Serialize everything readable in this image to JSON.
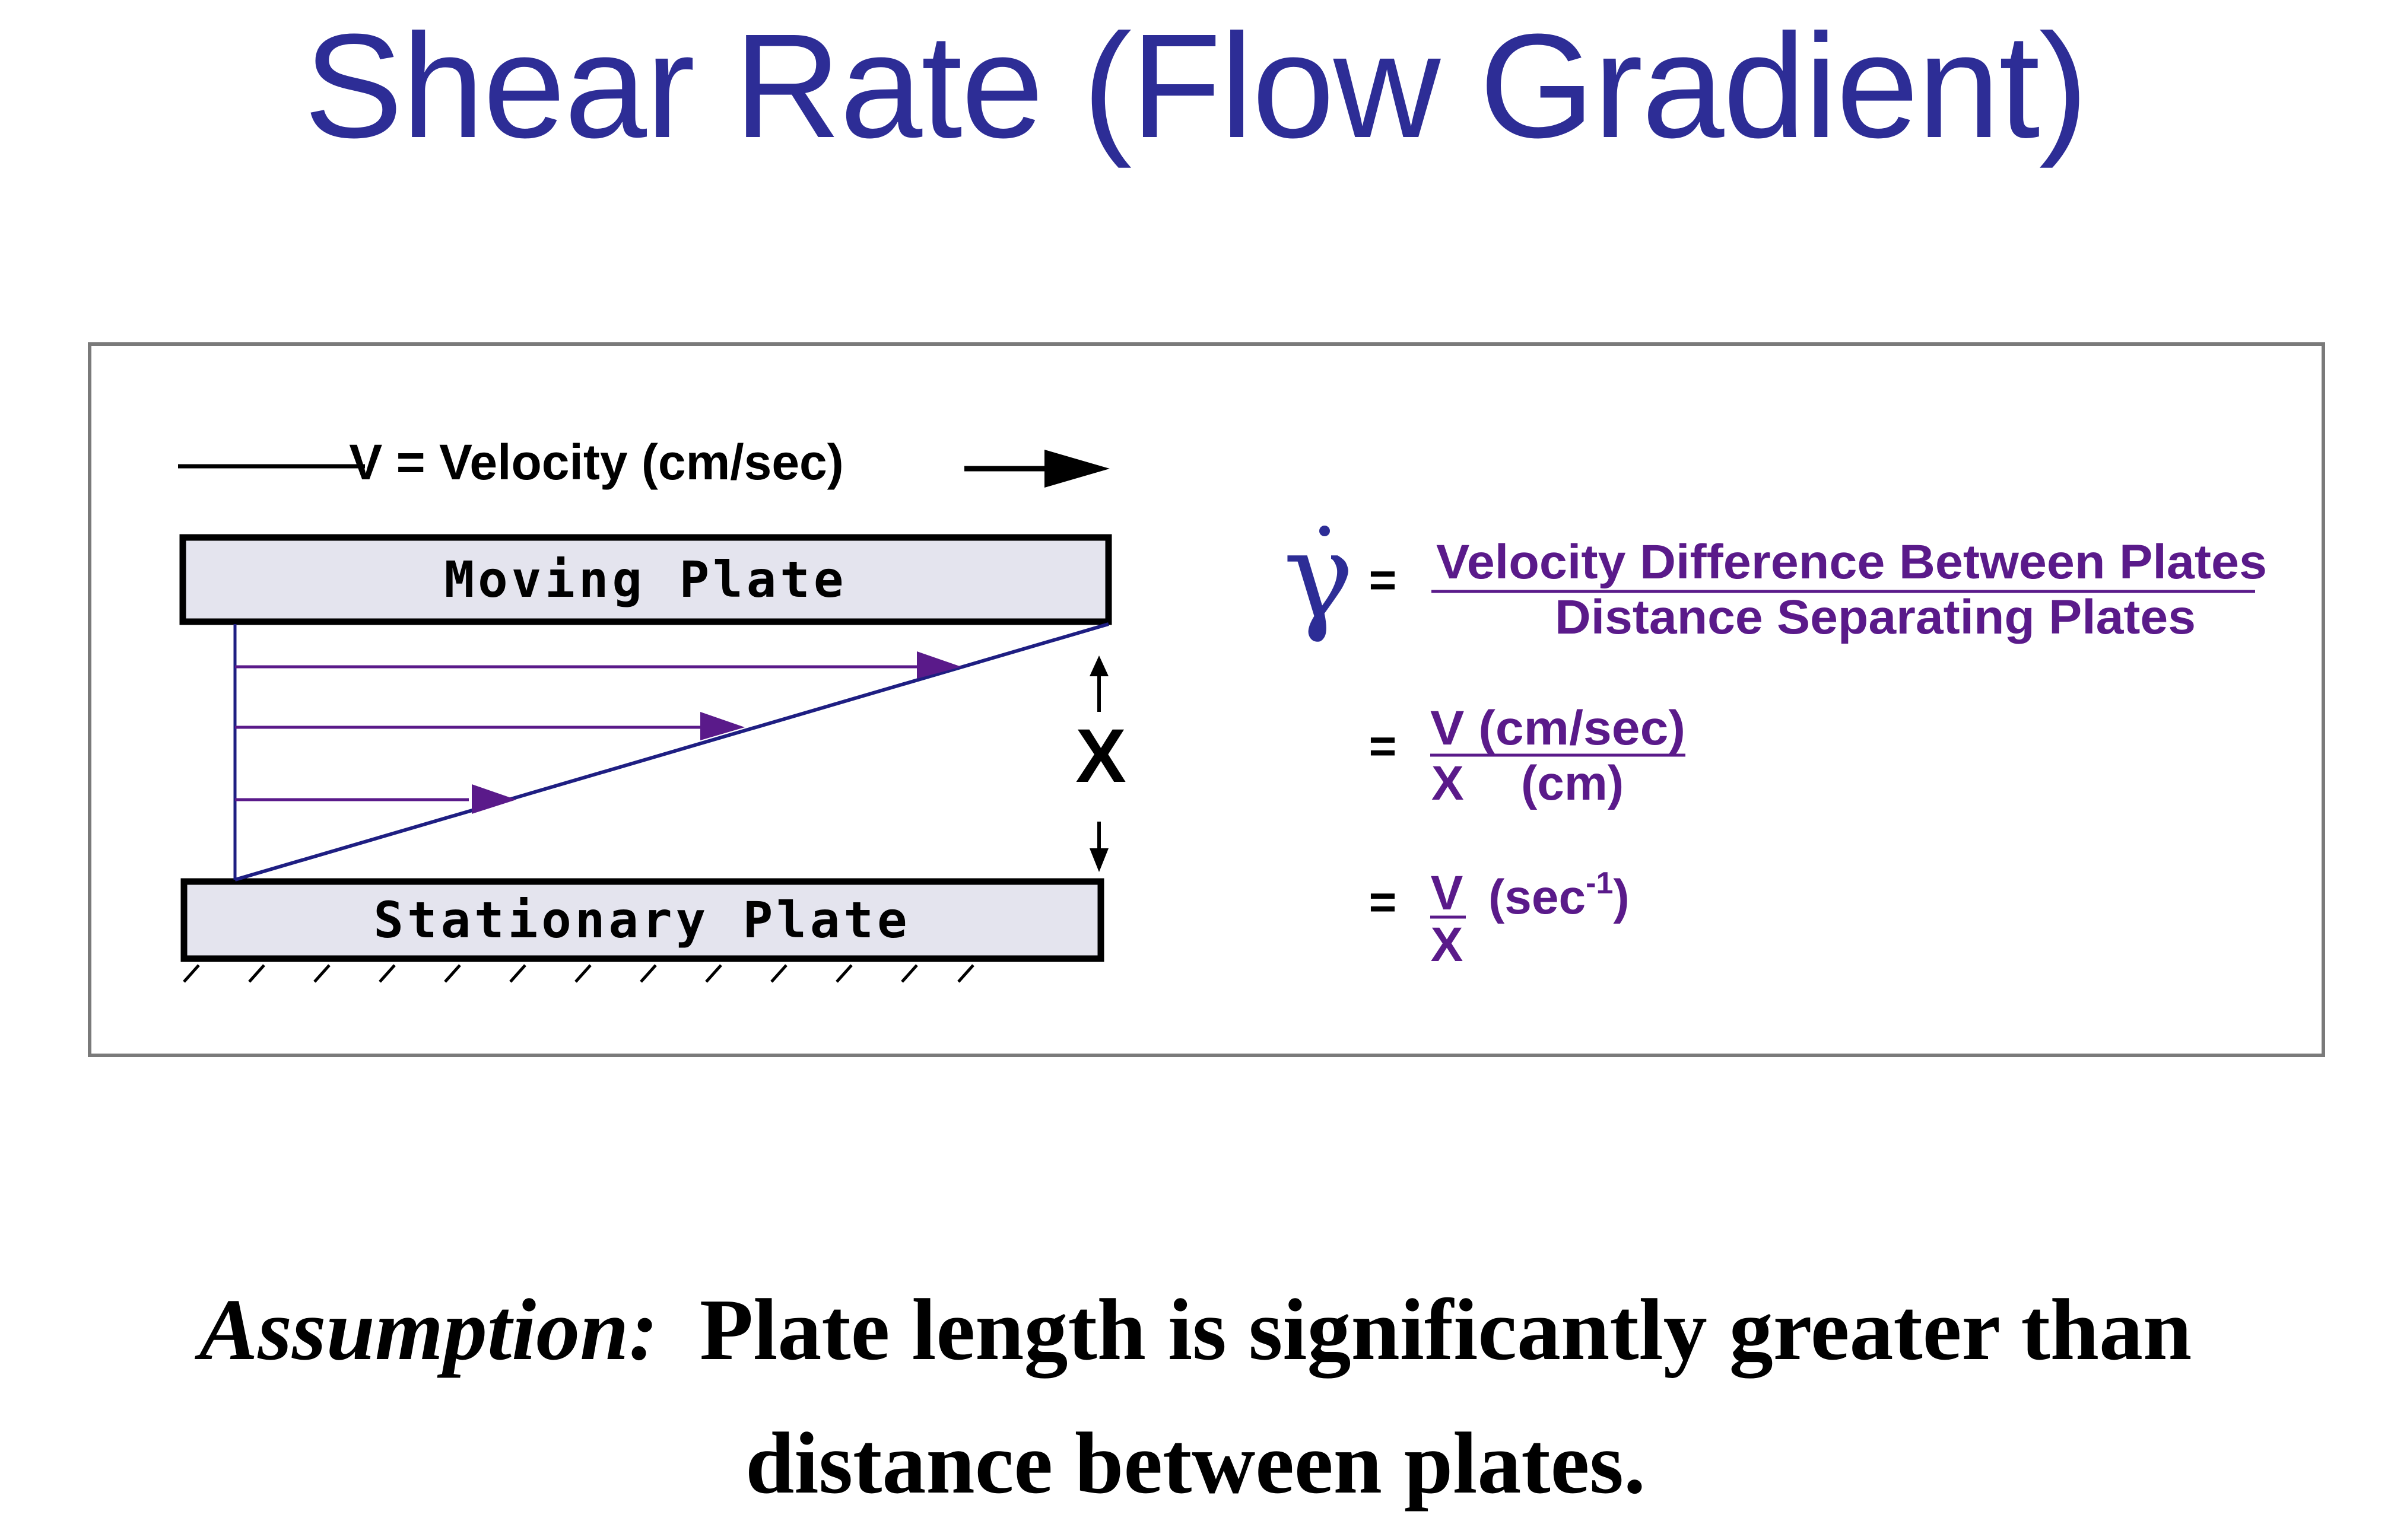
{
  "title": "Shear Rate (Flow Gradient)",
  "colors": {
    "title": "#2d2d96",
    "formula": "#5a1a8a",
    "gradient_line": "#1e1e82",
    "velocity_arrows": "#5a1a8a",
    "plate_fill": "#e4e4ee",
    "frame_border": "#7a7a7a"
  },
  "diagram": {
    "velocity_label": "V = Velocity (cm/sec)",
    "moving_plate": "Moving Plate",
    "stationary_plate": "Stationary Plate",
    "gap_label": "X",
    "formulas": {
      "symbol": "γ",
      "equals": "=",
      "f1_numerator": "Velocity Difference Between Plates",
      "f1_denominator": "Distance Separating Plates",
      "f2_numerator": "V (cm/sec)",
      "f2_denominator_var": "X",
      "f2_denominator_unit": "(cm)",
      "f3_numerator": "V",
      "f3_denominator": "X",
      "f3_unit_prefix": "(sec",
      "f3_unit_exponent": "-1",
      "f3_unit_suffix": ")"
    }
  },
  "assumption": {
    "label": "Assumption:",
    "line1": "Plate length is significantly greater than",
    "line2": "distance between plates."
  }
}
